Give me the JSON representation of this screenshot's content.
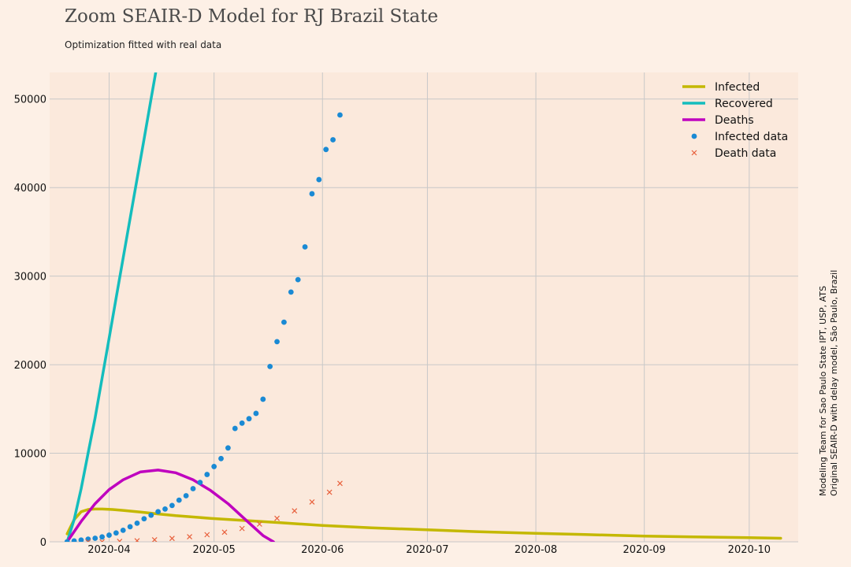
{
  "header": {
    "title": "Zoom SEAIR-D Model for RJ Brazil State",
    "subtitle": "Optimization fitted with real data"
  },
  "credits": {
    "line1": "Modeling Team for Sao Paulo State IPT, USP, ATS",
    "line2": "Original SEAIR-D with delay model, São Paulo, Brazil"
  },
  "chart_data": {
    "type": "line",
    "title": "Zoom SEAIR-D Model for RJ Brazil State",
    "subtitle": "Optimization fitted with real data",
    "xlabel": "",
    "ylabel": "",
    "xlim": [
      "2020-03-15",
      "2020-10-15"
    ],
    "ylim": [
      0,
      53000
    ],
    "grid": true,
    "legend_position": "top-right",
    "x_ticks": [
      "2020-04",
      "2020-05",
      "2020-06",
      "2020-07",
      "2020-08",
      "2020-09",
      "2020-10"
    ],
    "y_ticks": [
      0,
      10000,
      20000,
      30000,
      40000,
      50000
    ],
    "colors": {
      "infected": "#c4b800",
      "recovered": "#14bdbd",
      "deaths": "#bf00bf",
      "infected_data": "#1a8ad4",
      "death_data": "#e8603c",
      "plot_bg": "#fbe9dc",
      "grid": "#c8c8c8"
    },
    "series": [
      {
        "name": "Infected",
        "kind": "line",
        "x": [
          "2020-03-20",
          "2020-03-22",
          "2020-03-24",
          "2020-03-26",
          "2020-03-28",
          "2020-03-30",
          "2020-04-02",
          "2020-04-05",
          "2020-04-10",
          "2020-04-15",
          "2020-04-20",
          "2020-04-30",
          "2020-05-10",
          "2020-05-20",
          "2020-06-01",
          "2020-06-15",
          "2020-07-01",
          "2020-07-15",
          "2020-08-01",
          "2020-08-15",
          "2020-09-01",
          "2020-09-15",
          "2020-10-01",
          "2020-10-10"
        ],
        "y": [
          900,
          2500,
          3400,
          3650,
          3700,
          3700,
          3650,
          3550,
          3350,
          3150,
          2950,
          2650,
          2400,
          2150,
          1850,
          1580,
          1350,
          1150,
          950,
          820,
          650,
          560,
          470,
          400
        ]
      },
      {
        "name": "Recovered",
        "kind": "line",
        "x": [
          "2020-03-20",
          "2020-03-22",
          "2020-03-24",
          "2020-03-26",
          "2020-03-28",
          "2020-03-30",
          "2020-04-01",
          "2020-04-03",
          "2020-04-05",
          "2020-04-07",
          "2020-04-09",
          "2020-04-11",
          "2020-04-13",
          "2020-04-15"
        ],
        "y": [
          0,
          2500,
          6000,
          10000,
          14000,
          18500,
          23000,
          27500,
          32000,
          36500,
          41000,
          45500,
          50000,
          54500
        ]
      },
      {
        "name": "Deaths",
        "kind": "line",
        "x": [
          "2020-03-20",
          "2020-03-24",
          "2020-03-28",
          "2020-04-01",
          "2020-04-05",
          "2020-04-10",
          "2020-04-15",
          "2020-04-20",
          "2020-04-25",
          "2020-04-30",
          "2020-05-05",
          "2020-05-10",
          "2020-05-15",
          "2020-05-18"
        ],
        "y": [
          0,
          2300,
          4300,
          5900,
          7000,
          7900,
          8100,
          7800,
          7000,
          5800,
          4300,
          2500,
          700,
          0
        ]
      },
      {
        "name": "Infected data",
        "kind": "scatter",
        "x": [
          "2020-03-20",
          "2020-03-22",
          "2020-03-24",
          "2020-03-26",
          "2020-03-28",
          "2020-03-30",
          "2020-04-01",
          "2020-04-03",
          "2020-04-05",
          "2020-04-07",
          "2020-04-09",
          "2020-04-11",
          "2020-04-13",
          "2020-04-15",
          "2020-04-17",
          "2020-04-19",
          "2020-04-21",
          "2020-04-23",
          "2020-04-25",
          "2020-04-27",
          "2020-04-29",
          "2020-05-01",
          "2020-05-03",
          "2020-05-05",
          "2020-05-07",
          "2020-05-09",
          "2020-05-11",
          "2020-05-13",
          "2020-05-15",
          "2020-05-17",
          "2020-05-19",
          "2020-05-21",
          "2020-05-23",
          "2020-05-25",
          "2020-05-27",
          "2020-05-29",
          "2020-05-31",
          "2020-06-02",
          "2020-06-04",
          "2020-06-06"
        ],
        "y": [
          0,
          100,
          200,
          300,
          400,
          550,
          750,
          1000,
          1300,
          1700,
          2100,
          2600,
          3000,
          3400,
          3700,
          4100,
          4700,
          5200,
          6000,
          6700,
          7600,
          8500,
          9400,
          10600,
          12800,
          13400,
          13900,
          14500,
          16100,
          19800,
          22600,
          24800,
          28200,
          29600,
          33300,
          39300,
          40900,
          44300,
          45400,
          48200
        ]
      },
      {
        "name": "Death data",
        "kind": "scatter",
        "x": [
          "2020-03-26",
          "2020-03-30",
          "2020-04-04",
          "2020-04-09",
          "2020-04-14",
          "2020-04-19",
          "2020-04-24",
          "2020-04-29",
          "2020-05-04",
          "2020-05-09",
          "2020-05-14",
          "2020-05-19",
          "2020-05-24",
          "2020-05-29",
          "2020-06-03",
          "2020-06-06"
        ],
        "y": [
          0,
          10,
          50,
          120,
          230,
          380,
          570,
          800,
          1080,
          1500,
          2000,
          2650,
          3500,
          4500,
          5600,
          6600
        ]
      }
    ]
  }
}
